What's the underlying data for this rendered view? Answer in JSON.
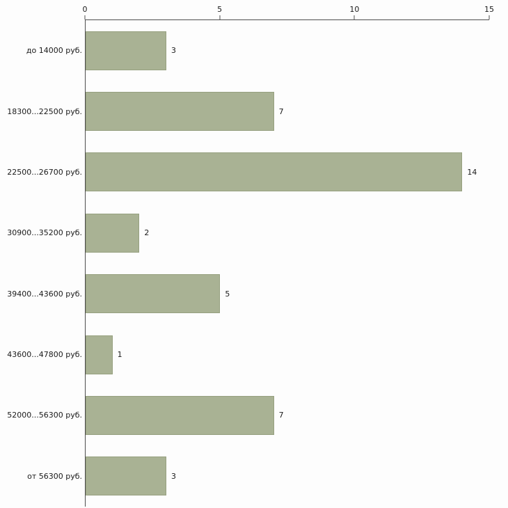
{
  "chart_data": {
    "type": "bar",
    "orientation": "horizontal",
    "title": "",
    "xlabel": "",
    "ylabel": "",
    "categories": [
      "до 14000 руб.",
      "18300...22500 руб.",
      "22500...26700 руб.",
      "30900...35200 руб.",
      "39400...43600 руб.",
      "43600...47800 руб.",
      "52000...56300 руб.",
      "от 56300 руб."
    ],
    "values": [
      3,
      7,
      14,
      2,
      5,
      1,
      7,
      3
    ],
    "xlim": [
      0,
      15
    ],
    "x_ticks": [
      "0",
      "5",
      "10",
      "15"
    ],
    "x_tick_values": [
      0,
      5,
      10,
      15
    ],
    "grid": false,
    "legend": "none",
    "axis_position": "top-left",
    "colors": {
      "bar_fill": "#a9b294",
      "bar_border": "#96a07f",
      "axis_line": "#4d4d4d",
      "text": "#1a1a1a",
      "background": "#fdfdfd"
    }
  }
}
